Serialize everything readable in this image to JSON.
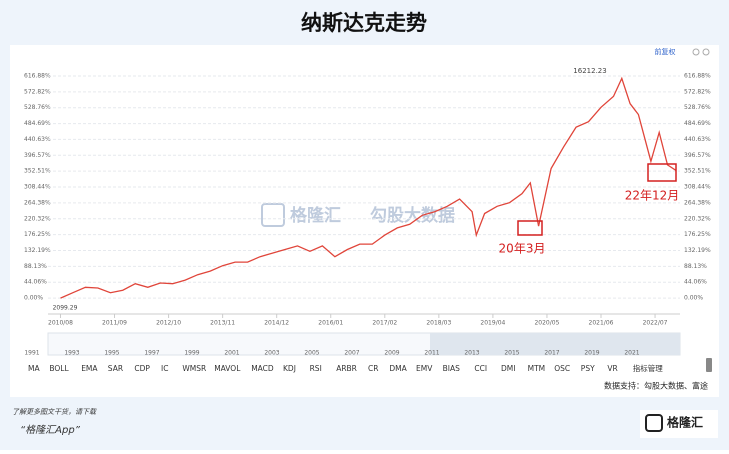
{
  "title": "纳斯达克走势",
  "adjust": "前复权",
  "watermark": {
    "brand": "格隆汇",
    "data": "勾股大数据"
  },
  "chart_data": {
    "type": "line",
    "x": [
      "2010/08",
      "2010/11",
      "2011/02",
      "2011/05",
      "2011/08",
      "2011/11",
      "2012/02",
      "2012/05",
      "2012/08",
      "2012/11",
      "2013/02",
      "2013/05",
      "2013/08",
      "2013/11",
      "2014/02",
      "2014/05",
      "2014/08",
      "2014/11",
      "2015/02",
      "2015/05",
      "2015/08",
      "2015/11",
      "2016/02",
      "2016/05",
      "2016/08",
      "2016/11",
      "2017/02",
      "2017/05",
      "2017/08",
      "2017/11",
      "2018/02",
      "2018/05",
      "2018/08",
      "2018/11",
      "2018/12",
      "2019/02",
      "2019/05",
      "2019/08",
      "2019/11",
      "2020/01",
      "2020/03",
      "2020/06",
      "2020/09",
      "2020/12",
      "2021/03",
      "2021/06",
      "2021/09",
      "2021/11",
      "2022/01",
      "2022/03",
      "2022/06",
      "2022/08",
      "2022/10",
      "2022/12"
    ],
    "values": [
      0,
      15,
      30,
      28,
      15,
      22,
      40,
      30,
      42,
      40,
      50,
      65,
      75,
      90,
      100,
      100,
      115,
      125,
      135,
      145,
      130,
      145,
      115,
      135,
      150,
      150,
      175,
      195,
      205,
      230,
      240,
      255,
      275,
      240,
      175,
      235,
      255,
      265,
      290,
      320,
      200,
      360,
      420,
      475,
      490,
      530,
      560,
      610,
      540,
      510,
      380,
      460,
      370,
      355
    ],
    "color": "#e0453a",
    "xlim": [
      "2010/05",
      "2023/01"
    ],
    "xticks": [
      "2010/08",
      "2011/09",
      "2012/10",
      "2013/11",
      "2014/12",
      "2016/01",
      "2017/02",
      "2018/03",
      "2019/04",
      "2020/05",
      "2021/06",
      "2022/07"
    ],
    "ylim": [
      -33,
      639
    ],
    "yticks": [
      {
        "value": 0,
        "label": "0.00%"
      },
      {
        "value": 44.06,
        "label": "44.06%"
      },
      {
        "value": 88.13,
        "label": "88.13%"
      },
      {
        "value": 132.19,
        "label": "132.19%"
      },
      {
        "value": 176.25,
        "label": "176.25%"
      },
      {
        "value": 220.32,
        "label": "220.32%"
      },
      {
        "value": 264.38,
        "label": "264.38%"
      },
      {
        "value": 308.44,
        "label": "308.44%"
      },
      {
        "value": 352.51,
        "label": "352.51%"
      },
      {
        "value": 396.57,
        "label": "396.57%"
      },
      {
        "value": 440.63,
        "label": "440.63%"
      },
      {
        "value": 484.69,
        "label": "484.69%"
      },
      {
        "value": 528.76,
        "label": "528.76%"
      },
      {
        "value": 572.82,
        "label": "572.82%"
      },
      {
        "value": 616.88,
        "label": "616.88%"
      }
    ],
    "grid": true,
    "annotations": [
      "16212.23",
      "2099.29",
      "20年3月",
      "22年12月"
    ]
  },
  "navigator": {
    "years": [
      "1991",
      "1993",
      "1995",
      "1997",
      "1999",
      "2001",
      "2003",
      "2005",
      "2007",
      "2009",
      "2011",
      "2013",
      "2015",
      "2017",
      "2019",
      "2021"
    ]
  },
  "indicators": [
    "MA",
    "BOLL",
    "EMA",
    "SAR",
    "CDP",
    "IC",
    "WMSR",
    "MAVOL",
    "MACD",
    "KDJ",
    "RSI",
    "ARBR",
    "CR",
    "DMA",
    "EMV",
    "BIAS",
    "CCI",
    "DMI",
    "MTM",
    "OSC",
    "PSY",
    "VR"
  ],
  "indicator_manage": "指标管理",
  "source": "数据支持：勾股大数据、富途",
  "footer": {
    "line1": "了解更多图文干货，请下载",
    "line2": "“格隆汇App”",
    "logo": "格隆汇"
  }
}
